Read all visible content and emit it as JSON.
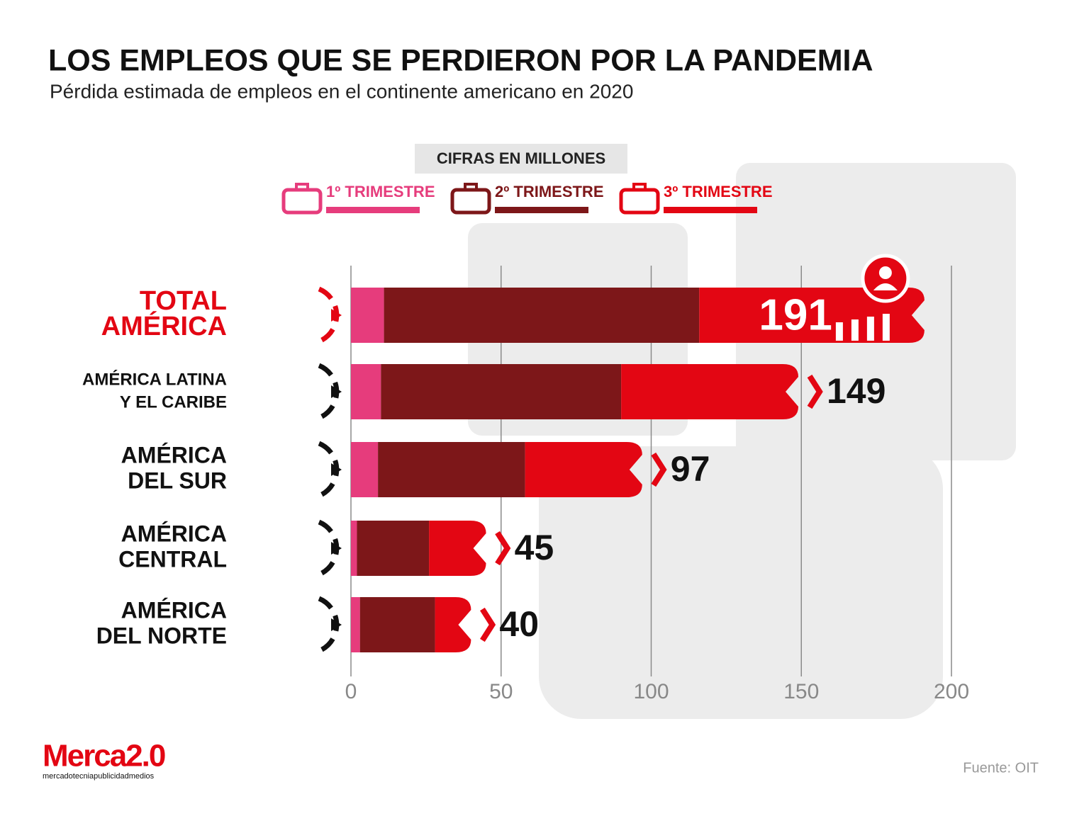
{
  "chart_data": {
    "type": "stacked-bar-horizontal",
    "title": "LOS EMPLEOS QUE SE PERDIERON POR LA PANDEMIA",
    "subtitle": "Pérdida estimada de empleos en el continente americano en 2020",
    "legend_title": "CIFRAS EN MILLONES",
    "categories": [
      [
        "TOTAL",
        "AMÉRICA"
      ],
      [
        "AMÉRICA LATINA",
        "Y EL CARIBE"
      ],
      [
        "AMÉRICA",
        "DEL SUR"
      ],
      [
        "AMÉRICA",
        "CENTRAL"
      ],
      [
        "AMÉRICA",
        "DEL NORTE"
      ]
    ],
    "series": [
      {
        "name": "1º TRIMESTRE",
        "color": "#e63c7c",
        "values": [
          11,
          10,
          9,
          2,
          3
        ]
      },
      {
        "name": "2º TRIMESTRE",
        "color": "#7d1719",
        "values": [
          105,
          80,
          49,
          24,
          25
        ]
      },
      {
        "name": "3º TRIMESTRE",
        "color": "#e30613",
        "values": [
          75,
          59,
          39,
          19,
          12
        ]
      }
    ],
    "totals": [
      191,
      149,
      97,
      45,
      40
    ],
    "xlim": [
      0,
      200
    ],
    "xticks": [
      0,
      50,
      100,
      150,
      200
    ],
    "grid": true,
    "source": "Fuente: OIT",
    "logo": {
      "name": "Merca2.0",
      "tagline": "mercadotecniapublicidadmedios"
    }
  }
}
